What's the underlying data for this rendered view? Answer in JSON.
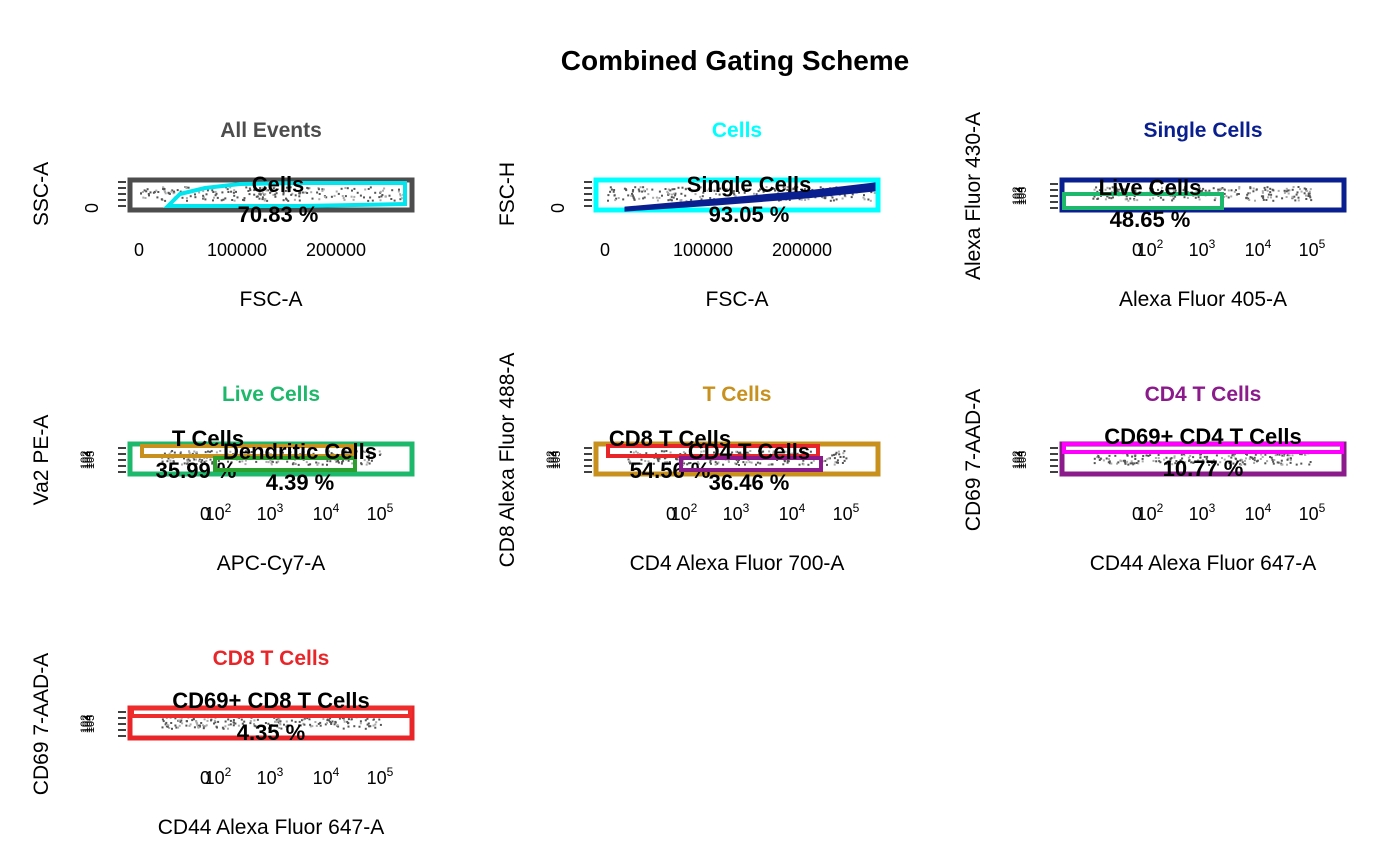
{
  "figure": {
    "title": "Combined Gating Scheme"
  },
  "colors": {
    "text": "#000000",
    "axis": "#000000",
    "events": "#555555",
    "events_light": "#aaaaaa"
  },
  "chart_data": [
    {
      "type": "scatter",
      "title": "All Events",
      "title_color": "#4d4d4d",
      "xlabel": "FSC-A",
      "ylabel": "SSC-A",
      "x_scale": "linear",
      "xticks": [
        "0",
        "100000",
        "200000"
      ],
      "yticks": [
        "0"
      ],
      "parent_color": "#4d4d4d",
      "gates": [
        {
          "name": "Cells",
          "percent": "70.83 %",
          "color": "#00e5ee",
          "shape": "polygon"
        }
      ]
    },
    {
      "type": "scatter",
      "title": "Cells",
      "title_color": "#00ffff",
      "xlabel": "FSC-A",
      "ylabel": "FSC-H",
      "x_scale": "linear",
      "xticks": [
        "0",
        "100000",
        "200000"
      ],
      "yticks": [
        "0"
      ],
      "parent_color": "#00ffff",
      "gates": [
        {
          "name": "Single Cells",
          "percent": "93.05 %",
          "color": "#0a1f8f",
          "shape": "diagonal"
        }
      ]
    },
    {
      "type": "scatter",
      "title": "Single Cells",
      "title_color": "#0a1f8f",
      "xlabel": "Alexa Fluor 405-A",
      "ylabel": "Alexa Fluor 430-A",
      "x_scale": "log",
      "xticks": [
        "0",
        "10^2",
        "10^3",
        "10^4",
        "10^5"
      ],
      "yticks": [
        "10^2",
        "10^3",
        "10^4",
        "10^5"
      ],
      "parent_color": "#0a1f8f",
      "gates": [
        {
          "name": "Live Cells",
          "percent": "48.65 %",
          "color": "#1db86b",
          "shape": "rect"
        }
      ]
    },
    {
      "type": "scatter",
      "title": "Live Cells",
      "title_color": "#1db86b",
      "xlabel": "APC-Cy7-A",
      "ylabel": "Va2 PE-A",
      "x_scale": "log",
      "xticks": [
        "0",
        "10^2",
        "10^3",
        "10^4",
        "10^5"
      ],
      "yticks": [
        "10^2",
        "10^3",
        "10^4",
        "10^5"
      ],
      "parent_color": "#1db86b",
      "gates": [
        {
          "name": "T Cells",
          "percent": "35.99 %",
          "color": "#c8901c",
          "shape": "rect"
        },
        {
          "name": "Dendritic Cells",
          "percent": "4.39 %",
          "color": "#2ca02c",
          "shape": "rect"
        }
      ]
    },
    {
      "type": "scatter",
      "title": "T Cells",
      "title_color": "#c8901c",
      "xlabel": "CD4 Alexa Fluor 700-A",
      "ylabel": "CD8 Alexa Fluor 488-A",
      "x_scale": "log",
      "xticks": [
        "0",
        "10^2",
        "10^3",
        "10^4",
        "10^5"
      ],
      "yticks": [
        "10^2",
        "10^3",
        "10^4",
        "10^5"
      ],
      "parent_color": "#c8901c",
      "gates": [
        {
          "name": "CD8 T Cells",
          "percent": "54.56 %",
          "color": "#e8262a",
          "shape": "rect"
        },
        {
          "name": "CD4 T Cells",
          "percent": "36.46 %",
          "color": "#8b1a8b",
          "shape": "rect"
        }
      ]
    },
    {
      "type": "scatter",
      "title": "CD4 T Cells",
      "title_color": "#8b1a8b",
      "xlabel": "CD44 Alexa Fluor 647-A",
      "ylabel": "CD69 7-AAD-A",
      "x_scale": "log",
      "xticks": [
        "0",
        "10^2",
        "10^3",
        "10^4",
        "10^5"
      ],
      "yticks": [
        "10^2",
        "10^3",
        "10^4",
        "10^5"
      ],
      "parent_color": "#8b1a8b",
      "gates": [
        {
          "name": "CD69+ CD4 T Cells",
          "percent": "10.77 %",
          "color": "#ff00ff",
          "shape": "band"
        }
      ]
    },
    {
      "type": "scatter",
      "title": "CD8 T Cells",
      "title_color": "#e8262a",
      "xlabel": "CD44 Alexa Fluor 647-A",
      "ylabel": "CD69 7-AAD-A",
      "x_scale": "log",
      "xticks": [
        "0",
        "10^2",
        "10^3",
        "10^4",
        "10^5"
      ],
      "yticks": [
        "10^2",
        "10^3",
        "10^4",
        "10^5"
      ],
      "parent_color": "#e8262a",
      "gates": [
        {
          "name": "CD69+ CD8 T Cells",
          "percent": "4.35 %",
          "color": "#ee2c2c",
          "shape": "band"
        }
      ]
    }
  ]
}
